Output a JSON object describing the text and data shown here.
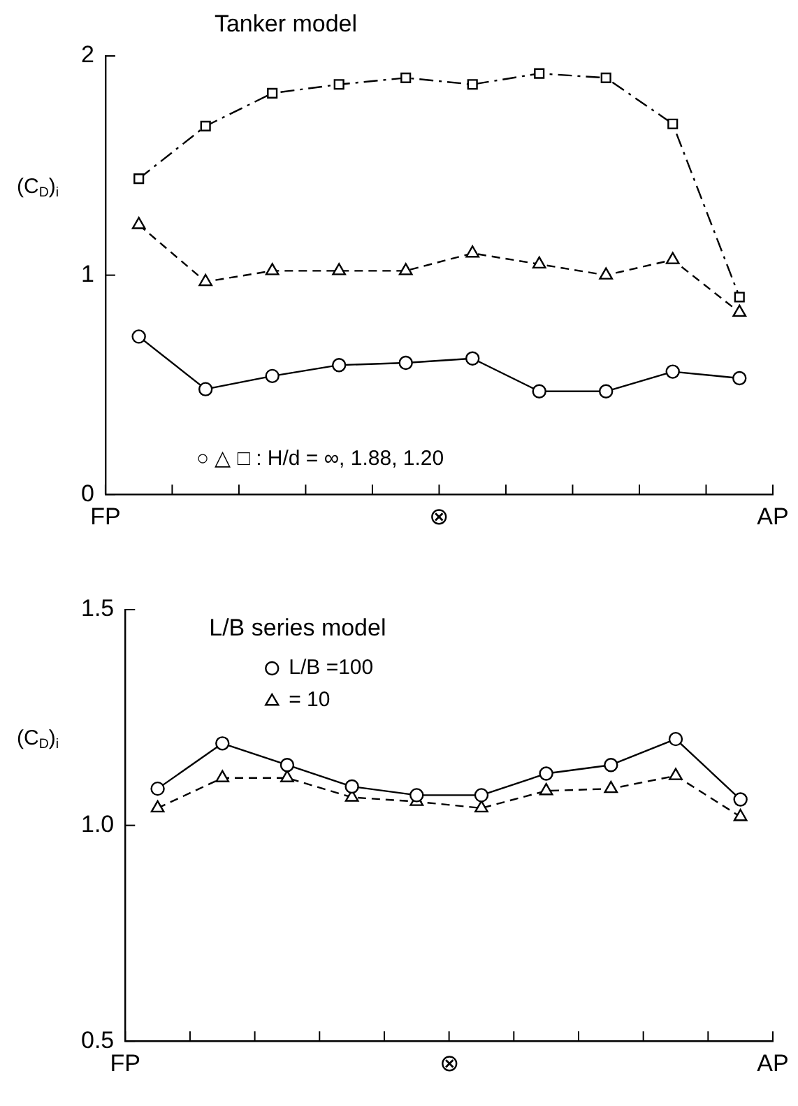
{
  "chart_data": [
    {
      "type": "line",
      "title": "Tanker model",
      "ylabel": "(C$_{D}$)$_{i}$",
      "categories": [
        null,
        null,
        null,
        null,
        null,
        null,
        null,
        null,
        null,
        null
      ],
      "series": [
        {
          "color": "#000000",
          "marker": "circle",
          "line_style": "solid",
          "values": [
            0.72,
            0.48,
            0.54,
            0.59,
            0.6,
            0.62,
            0.47,
            0.47,
            0.56,
            0.53
          ]
        },
        {
          "color": "#000000",
          "marker": "triangle",
          "line_style": "dashed",
          "values": [
            1.23,
            0.97,
            1.02,
            1.02,
            1.02,
            1.1,
            1.05,
            1.0,
            1.07,
            0.83
          ]
        },
        {
          "color": "#000000",
          "marker": "square",
          "line_style": "dashdot",
          "values": [
            1.44,
            1.68,
            1.83,
            1.87,
            1.9,
            1.87,
            1.92,
            1.9,
            1.69,
            0.9
          ]
        }
      ],
      "ylim": [
        0,
        2
      ],
      "yticks": [
        0,
        1,
        2
      ],
      "annotations": [
        "FP",
        "⊗",
        "AP",
        "○ △ □ : H/d = ∞, 1.88, 1.20"
      ]
    },
    {
      "type": "line",
      "title": "L/B series model",
      "ylabel": "(C$_{D}$)$_{i}$",
      "legend": "top left",
      "categories": [
        null,
        null,
        null,
        null,
        null,
        null,
        null,
        null,
        null,
        null
      ],
      "series": [
        {
          "name": "L/B =100",
          "color": "#000000",
          "marker": "circle",
          "line_style": "solid",
          "values": [
            1.085,
            1.19,
            1.14,
            1.09,
            1.07,
            1.07,
            1.12,
            1.14,
            1.2,
            1.06
          ]
        },
        {
          "name": "= 10",
          "color": "#000000",
          "marker": "triangle",
          "line_style": "dashed",
          "values": [
            1.04,
            1.11,
            1.11,
            1.065,
            1.055,
            1.04,
            1.08,
            1.085,
            1.115,
            1.02
          ]
        }
      ],
      "ylim": [
        0.5,
        1.5
      ],
      "yticks": [
        0.5,
        {
          "value": 1,
          "label": "1.0"
        },
        1.5
      ],
      "annotations": [
        "FP",
        "⊗",
        "AP"
      ]
    }
  ]
}
